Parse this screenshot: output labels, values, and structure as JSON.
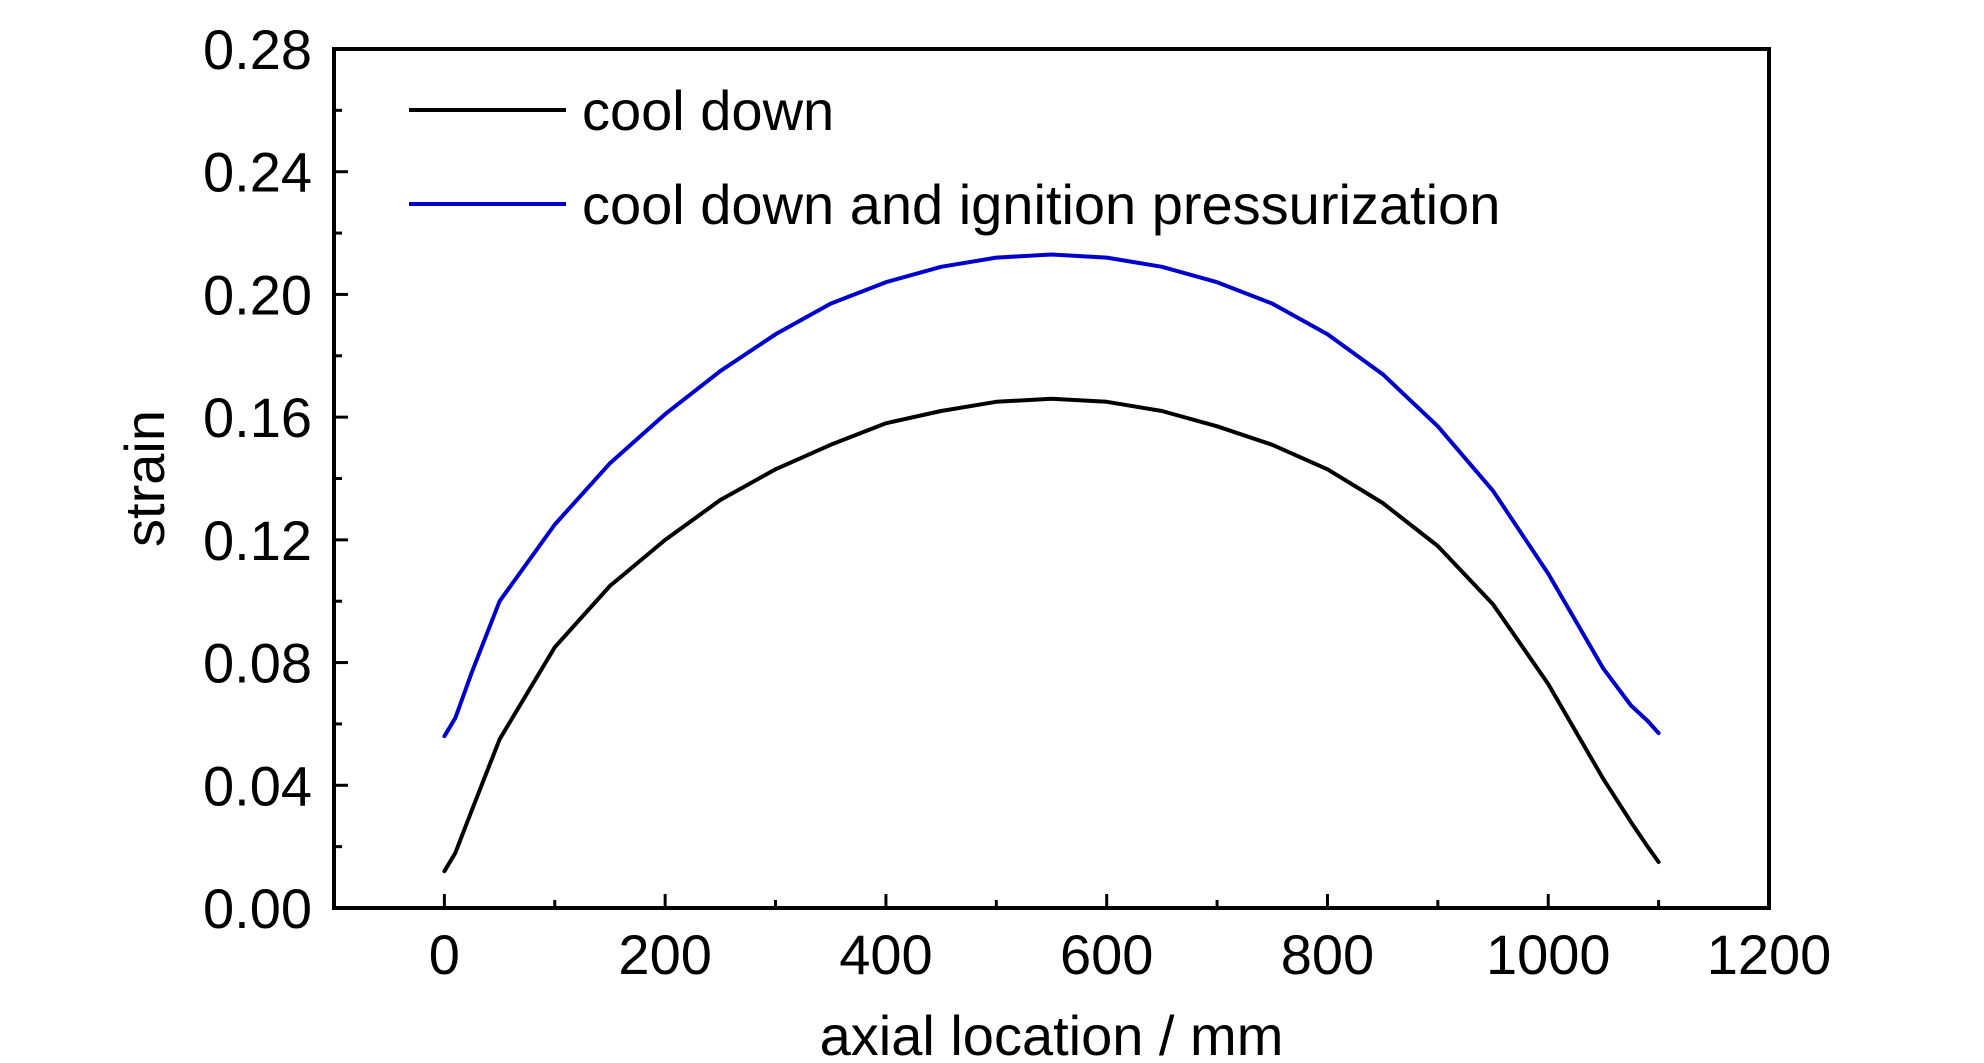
{
  "chart_data": {
    "type": "line",
    "title": "",
    "xlabel": "axial location / mm",
    "ylabel": "strain",
    "xlim": [
      -100,
      1200
    ],
    "ylim": [
      0,
      0.28
    ],
    "xticks": [
      0,
      200,
      400,
      600,
      800,
      1000,
      1200
    ],
    "xtick_labels": [
      "0",
      "200",
      "400",
      "600",
      "800",
      "1000",
      "1200"
    ],
    "yticks": [
      0,
      0.04,
      0.08,
      0.12,
      0.16,
      0.2,
      0.24,
      0.28
    ],
    "ytick_labels": [
      "0.00",
      "0.04",
      "0.08",
      "0.12",
      "0.16",
      "0.20",
      "0.24",
      "0.28"
    ],
    "grid": false,
    "legend_position": "top-left",
    "series": [
      {
        "name": "cool down",
        "color": "#000000",
        "x": [
          0,
          10,
          25,
          50,
          100,
          150,
          200,
          250,
          300,
          350,
          400,
          450,
          500,
          550,
          600,
          650,
          700,
          750,
          800,
          850,
          900,
          950,
          1000,
          1050,
          1075,
          1090,
          1100
        ],
        "y": [
          0.012,
          0.018,
          0.032,
          0.055,
          0.085,
          0.105,
          0.12,
          0.133,
          0.143,
          0.151,
          0.158,
          0.162,
          0.165,
          0.166,
          0.165,
          0.162,
          0.157,
          0.151,
          0.143,
          0.132,
          0.118,
          0.099,
          0.073,
          0.042,
          0.028,
          0.02,
          0.015
        ]
      },
      {
        "name": "cool down and ignition pressurization",
        "color": "#0000cc",
        "x": [
          0,
          10,
          25,
          50,
          100,
          150,
          200,
          250,
          300,
          350,
          400,
          450,
          500,
          550,
          600,
          650,
          700,
          750,
          800,
          850,
          900,
          950,
          1000,
          1050,
          1075,
          1090,
          1100
        ],
        "y": [
          0.056,
          0.062,
          0.077,
          0.1,
          0.125,
          0.145,
          0.161,
          0.175,
          0.187,
          0.197,
          0.204,
          0.209,
          0.212,
          0.213,
          0.212,
          0.209,
          0.204,
          0.197,
          0.187,
          0.174,
          0.157,
          0.136,
          0.109,
          0.078,
          0.066,
          0.061,
          0.057
        ]
      }
    ]
  }
}
